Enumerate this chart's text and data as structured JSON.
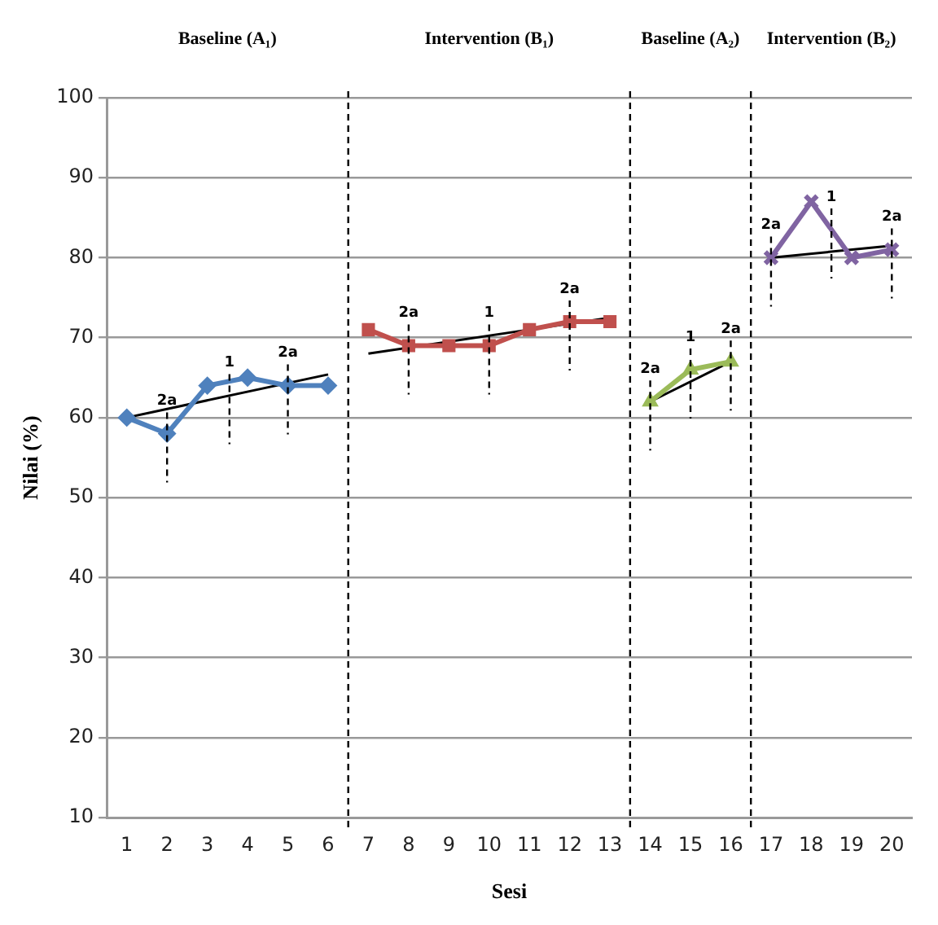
{
  "chart_data": {
    "type": "line",
    "xlabel": "Sesi",
    "ylabel": "Nilai (%)",
    "xlim": [
      0.5,
      20.5
    ],
    "xticks": [
      1,
      2,
      3,
      4,
      5,
      6,
      7,
      8,
      9,
      10,
      11,
      12,
      13,
      14,
      15,
      16,
      17,
      18,
      19,
      20
    ],
    "ylim": [
      10,
      100
    ],
    "yticks": [
      10,
      20,
      30,
      40,
      50,
      60,
      70,
      80,
      90,
      100
    ],
    "grid": "y",
    "legend": false,
    "series": [
      {
        "color": "#4f81bd",
        "marker": "diamond",
        "x": [
          1,
          2,
          3,
          4,
          5,
          6
        ],
        "values": [
          60,
          58,
          64,
          65,
          64,
          64
        ]
      },
      {
        "color": "#c0504d",
        "marker": "square",
        "x": [
          7,
          8,
          9,
          10,
          11,
          12,
          13
        ],
        "values": [
          71,
          69,
          69,
          69,
          71,
          72,
          72
        ]
      },
      {
        "color": "#9bbb59",
        "marker": "triangle",
        "x": [
          14,
          15,
          16
        ],
        "values": [
          62,
          66,
          67
        ]
      },
      {
        "color": "#8064a2",
        "marker": "cross",
        "x": [
          17,
          18,
          19,
          20
        ],
        "values": [
          80,
          87,
          80,
          81
        ]
      },
      {
        "color": "#000000",
        "marker": "none",
        "x": [
          1,
          6
        ],
        "values": [
          60,
          65.4
        ]
      },
      {
        "color": "#000000",
        "marker": "none",
        "x": [
          7,
          13
        ],
        "values": [
          68,
          72.5
        ]
      },
      {
        "color": "#000000",
        "marker": "none",
        "x": [
          14,
          16
        ],
        "values": [
          62,
          67
        ]
      },
      {
        "color": "#000000",
        "marker": "none",
        "x": [
          17,
          20
        ],
        "values": [
          80,
          81.5
        ]
      }
    ],
    "ref_lines": [
      {
        "axis": "x",
        "value": 6.5,
        "color": "#000000",
        "line_style": "dashed"
      },
      {
        "axis": "x",
        "value": 13.5,
        "color": "#000000",
        "line_style": "dashed"
      },
      {
        "axis": "x",
        "value": 16.5,
        "color": "#000000",
        "line_style": "dashed"
      }
    ],
    "annotations": [
      "Baseline (A₁)",
      "Intervention (B₁)",
      "Baseline (A₂)",
      "Intervention (B₂)",
      {
        "text": "2a",
        "x": 2,
        "y": 58
      },
      {
        "text": "1",
        "x": 3.55,
        "y": 62.8
      },
      {
        "text": "2a",
        "x": 5,
        "y": 64
      },
      {
        "text": "2a",
        "x": 8,
        "y": 69
      },
      {
        "text": "1",
        "x": 10,
        "y": 69
      },
      {
        "text": "2a",
        "x": 12,
        "y": 72
      },
      {
        "text": "2a",
        "x": 14,
        "y": 62
      },
      {
        "text": "1",
        "x": 15,
        "y": 66
      },
      {
        "text": "2a",
        "x": 16,
        "y": 67
      },
      {
        "text": "2a",
        "x": 17,
        "y": 80
      },
      {
        "text": "1",
        "x": 18.5,
        "y": 83.5
      },
      {
        "text": "2a",
        "x": 20,
        "y": 81
      }
    ]
  }
}
